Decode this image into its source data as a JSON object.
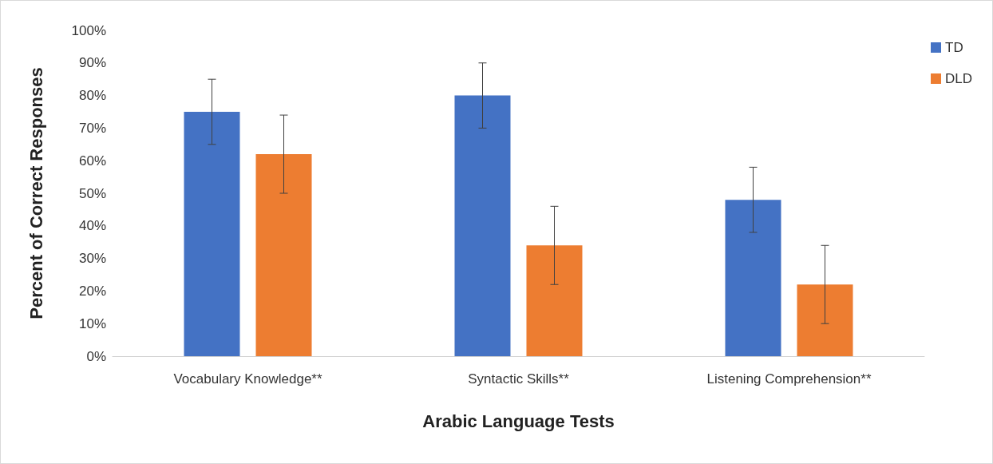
{
  "chart_data": {
    "type": "bar",
    "xlabel": "Arabic Language Tests",
    "ylabel": "Percent of Correct Responses",
    "categories": [
      "Vocabulary Knowledge**",
      "Syntactic Skills**",
      "Listening Comprehension**"
    ],
    "series": [
      {
        "name": "TD",
        "color": "#4472c4",
        "values": [
          75,
          80,
          48
        ],
        "errors": [
          10,
          10,
          10
        ]
      },
      {
        "name": "DLD",
        "color": "#ed7d31",
        "values": [
          62,
          34,
          22
        ],
        "errors": [
          12,
          12,
          12
        ]
      }
    ],
    "ylim": [
      0,
      100
    ],
    "yticks": [
      {
        "value": 0,
        "label": "0%"
      },
      {
        "value": 10,
        "label": "10%"
      },
      {
        "value": 20,
        "label": "20%"
      },
      {
        "value": 30,
        "label": "30%"
      },
      {
        "value": 40,
        "label": "40%"
      },
      {
        "value": 50,
        "label": "50%"
      },
      {
        "value": 60,
        "label": "60%"
      },
      {
        "value": 70,
        "label": "70%"
      },
      {
        "value": 80,
        "label": "80%"
      },
      {
        "value": 90,
        "label": "90%"
      },
      {
        "value": 100,
        "label": "100%"
      }
    ],
    "grid": false,
    "legend": "top right"
  }
}
